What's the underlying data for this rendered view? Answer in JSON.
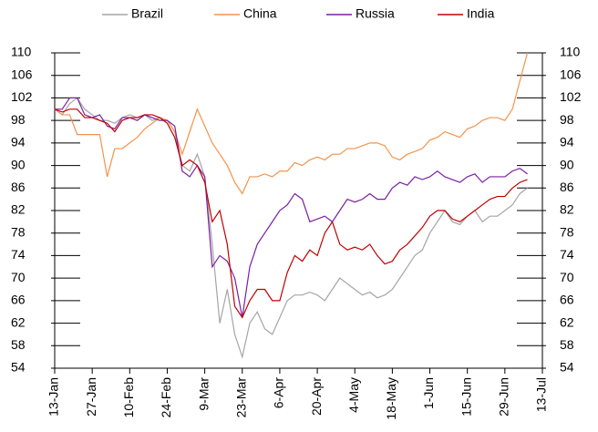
{
  "chart_data": {
    "type": "line",
    "categories": [
      "13-Jan",
      null,
      null,
      null,
      null,
      "27-Jan",
      null,
      null,
      null,
      null,
      "10-Feb",
      null,
      null,
      null,
      null,
      "24-Feb",
      null,
      null,
      null,
      null,
      "9-Mar",
      null,
      null,
      null,
      null,
      "23-Mar",
      null,
      null,
      null,
      null,
      "6-Apr",
      null,
      null,
      null,
      null,
      "20-Apr",
      null,
      null,
      null,
      null,
      "4-May",
      null,
      null,
      null,
      null,
      "18-May",
      null,
      null,
      null,
      null,
      "1-Jun",
      null,
      null,
      null,
      null,
      "15-Jun",
      null,
      null,
      null,
      null,
      "29-Jun",
      null,
      null,
      null,
      null,
      "13-Jul"
    ],
    "series": [
      {
        "name": "Brazil",
        "color": "#a5a5a5",
        "values": [
          100,
          99,
          101,
          102,
          100,
          99,
          98,
          98,
          97.5,
          98.5,
          99,
          98.5,
          99,
          98,
          98.5,
          98,
          96,
          90,
          89,
          92,
          88,
          76,
          62,
          68,
          60,
          56,
          62,
          64,
          61,
          60,
          63,
          66,
          67,
          67,
          67.5,
          67,
          66,
          68,
          70,
          69,
          68,
          67,
          67.5,
          66.5,
          67,
          68,
          70,
          72,
          74,
          75,
          78,
          80,
          82,
          80,
          79.5,
          81,
          82,
          80,
          81,
          81,
          82,
          83,
          85,
          86,
          null,
          null
        ]
      },
      {
        "name": "China",
        "color": "#f4934a",
        "values": [
          100,
          99,
          99,
          95.5,
          95.5,
          95.5,
          95.5,
          88,
          93,
          93,
          94,
          95,
          96.5,
          97.5,
          98.5,
          98,
          96,
          92,
          96,
          100,
          97,
          94,
          92,
          90,
          87,
          85,
          88,
          88,
          88.5,
          88,
          89,
          89,
          90.5,
          90,
          91,
          91.5,
          91,
          92,
          92,
          93,
          93,
          93.5,
          94,
          94,
          93.5,
          91.5,
          91,
          92,
          92.5,
          93,
          94.5,
          95,
          96,
          95.5,
          95,
          96.5,
          97,
          98,
          98.5,
          98.5,
          98,
          100,
          105,
          110,
          null,
          null
        ]
      },
      {
        "name": "Russia",
        "color": "#7b1fa2",
        "values": [
          100,
          100,
          102,
          102,
          99,
          98.5,
          99,
          97,
          96.5,
          98.5,
          98.5,
          98,
          99,
          98.5,
          98,
          98,
          97,
          89,
          88,
          90,
          88,
          72,
          74,
          73,
          70,
          63,
          72,
          76,
          78,
          80,
          82,
          83,
          85,
          84,
          80,
          80.5,
          81,
          80,
          82,
          84,
          83.5,
          84,
          85,
          84,
          84,
          86,
          87,
          86.5,
          88,
          87.5,
          88,
          89,
          88,
          87.5,
          87,
          88,
          88.5,
          87,
          88,
          88,
          88,
          89,
          89.5,
          88.5,
          null,
          null
        ]
      },
      {
        "name": "India",
        "color": "#c00000",
        "values": [
          100,
          99.5,
          100,
          100,
          98.5,
          98.5,
          98,
          97.5,
          96,
          98,
          98.5,
          98.5,
          99,
          99,
          98.5,
          97.5,
          95,
          90,
          91,
          90,
          87,
          80,
          82,
          76,
          65,
          63,
          66,
          68,
          68,
          66,
          66,
          71,
          74,
          73,
          75,
          74,
          78,
          80,
          76,
          75,
          75.5,
          75,
          76,
          74,
          72.5,
          73,
          75,
          76,
          77.5,
          79,
          81,
          82,
          82,
          80.5,
          80,
          81,
          82,
          83,
          84,
          84.5,
          84.5,
          86,
          87,
          87.5,
          null,
          null
        ]
      }
    ],
    "ylim": [
      54,
      110
    ],
    "yticks": [
      54,
      58,
      62,
      66,
      70,
      74,
      78,
      82,
      86,
      90,
      94,
      98,
      102,
      106,
      110
    ],
    "y2lim": [
      54,
      110
    ],
    "y2ticks": [
      54,
      58,
      62,
      66,
      70,
      74,
      78,
      82,
      86,
      90,
      94,
      98,
      102,
      106,
      110
    ],
    "legend": "top"
  }
}
